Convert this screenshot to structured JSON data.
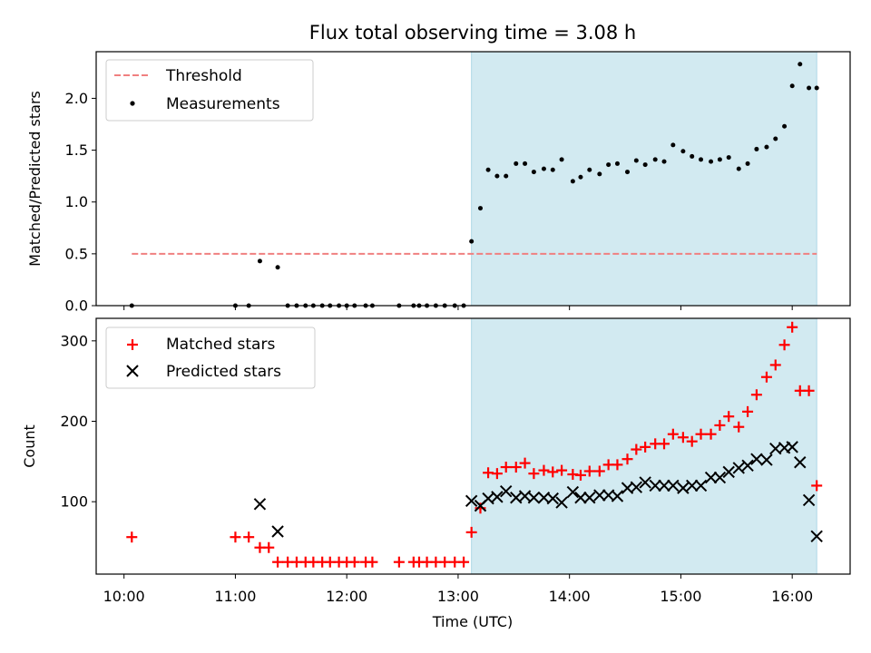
{
  "title": "Flux total observing time = 3.08 h",
  "xlabel": "Time (UTC)",
  "x_ticks": [
    "10:00",
    "11:00",
    "12:00",
    "13:00",
    "14:00",
    "15:00",
    "16:00"
  ],
  "colors": {
    "threshold": "#f08080",
    "measurements": "#000000",
    "matched": "#ff0000",
    "predicted": "#000000",
    "shade": "#add8e6"
  },
  "chart_data": [
    {
      "type": "scatter",
      "ylabel": "Matched/Predicted stars",
      "xlim": [
        9.75,
        16.52
      ],
      "ylim": [
        0,
        2.45
      ],
      "y_ticks": [
        0.0,
        0.5,
        1.0,
        1.5,
        2.0
      ],
      "y_tick_labels": [
        "0.0",
        "0.5",
        "1.0",
        "1.5",
        "2.0"
      ],
      "shaded_span": [
        13.12,
        16.22
      ],
      "threshold": {
        "name": "Threshold",
        "y": 0.5,
        "x_range": [
          10.07,
          16.22
        ]
      },
      "legend": {
        "position": "top-left",
        "entries": [
          "Threshold",
          "Measurements"
        ]
      },
      "series": [
        {
          "name": "Measurements",
          "x": [
            10.07,
            11.0,
            11.12,
            11.22,
            11.38,
            11.47,
            11.55,
            11.63,
            11.7,
            11.78,
            11.85,
            11.93,
            12.0,
            12.07,
            12.17,
            12.23,
            12.47,
            12.6,
            12.65,
            12.72,
            12.8,
            12.88,
            12.97,
            13.05,
            13.12,
            13.2,
            13.27,
            13.35,
            13.43,
            13.52,
            13.6,
            13.68,
            13.77,
            13.85,
            13.93,
            14.03,
            14.1,
            14.18,
            14.27,
            14.35,
            14.43,
            14.52,
            14.6,
            14.68,
            14.77,
            14.85,
            14.93,
            15.02,
            15.1,
            15.18,
            15.27,
            15.35,
            15.43,
            15.52,
            15.6,
            15.68,
            15.77,
            15.85,
            15.93,
            16.0,
            16.07,
            16.15,
            16.22
          ],
          "y": [
            0,
            0,
            0,
            0.43,
            0.37,
            0,
            0,
            0,
            0,
            0,
            0,
            0,
            0,
            0,
            0,
            0,
            0,
            0,
            0,
            0,
            0,
            0,
            0,
            0,
            0.62,
            0.94,
            1.31,
            1.25,
            1.25,
            1.37,
            1.37,
            1.29,
            1.32,
            1.31,
            1.41,
            1.2,
            1.24,
            1.31,
            1.27,
            1.36,
            1.37,
            1.29,
            1.4,
            1.36,
            1.41,
            1.39,
            1.55,
            1.49,
            1.44,
            1.41,
            1.39,
            1.41,
            1.43,
            1.32,
            1.37,
            1.51,
            1.53,
            1.61,
            1.73,
            2.12,
            2.33,
            2.1,
            2.1
          ]
        }
      ]
    },
    {
      "type": "scatter",
      "ylabel": "Count",
      "xlim": [
        9.75,
        16.52
      ],
      "ylim": [
        10,
        328
      ],
      "y_ticks": [
        100,
        200,
        300
      ],
      "y_tick_labels": [
        "100",
        "200",
        "300"
      ],
      "shaded_span": [
        13.12,
        16.22
      ],
      "legend": {
        "position": "top-left",
        "entries": [
          "Matched stars",
          "Predicted stars"
        ]
      },
      "series": [
        {
          "name": "Matched stars",
          "marker": "+",
          "x": [
            10.07,
            11.0,
            11.12,
            11.22,
            11.3,
            11.38,
            11.47,
            11.55,
            11.63,
            11.7,
            11.78,
            11.85,
            11.93,
            12.0,
            12.07,
            12.17,
            12.23,
            12.47,
            12.6,
            12.65,
            12.72,
            12.8,
            12.88,
            12.97,
            13.05,
            13.12,
            13.2,
            13.27,
            13.35,
            13.43,
            13.52,
            13.6,
            13.68,
            13.77,
            13.85,
            13.93,
            14.03,
            14.1,
            14.18,
            14.27,
            14.35,
            14.43,
            14.52,
            14.6,
            14.68,
            14.77,
            14.85,
            14.93,
            15.02,
            15.1,
            15.18,
            15.27,
            15.35,
            15.43,
            15.52,
            15.6,
            15.68,
            15.77,
            15.85,
            15.93,
            16.0,
            16.07,
            16.15,
            16.22
          ],
          "y": [
            56,
            56,
            56,
            43,
            43,
            25,
            25,
            25,
            25,
            25,
            25,
            25,
            25,
            25,
            25,
            25,
            25,
            25,
            25,
            25,
            25,
            25,
            25,
            25,
            25,
            62,
            92,
            136,
            135,
            143,
            143,
            148,
            135,
            139,
            137,
            139,
            134,
            133,
            138,
            138,
            146,
            146,
            153,
            165,
            168,
            172,
            172,
            184,
            180,
            175,
            184,
            184,
            195,
            206,
            193,
            212,
            233,
            255,
            270,
            295,
            317,
            238,
            238,
            120
          ]
        },
        {
          "name": "Predicted stars",
          "marker": "x",
          "x": [
            11.22,
            11.38,
            13.12,
            13.2,
            13.27,
            13.35,
            13.43,
            13.52,
            13.6,
            13.68,
            13.77,
            13.85,
            13.93,
            14.03,
            14.1,
            14.18,
            14.27,
            14.35,
            14.43,
            14.52,
            14.6,
            14.68,
            14.77,
            14.85,
            14.93,
            15.02,
            15.1,
            15.18,
            15.27,
            15.35,
            15.43,
            15.52,
            15.6,
            15.68,
            15.77,
            15.85,
            15.93,
            16.0,
            16.07,
            16.15,
            16.22
          ],
          "y": [
            97,
            63,
            101,
            95,
            104,
            106,
            113,
            105,
            107,
            105,
            105,
            104,
            99,
            112,
            105,
            105,
            108,
            108,
            107,
            117,
            118,
            124,
            120,
            120,
            120,
            117,
            120,
            120,
            130,
            130,
            137,
            142,
            145,
            153,
            152,
            166,
            167,
            168,
            149,
            102,
            57
          ]
        }
      ]
    }
  ]
}
